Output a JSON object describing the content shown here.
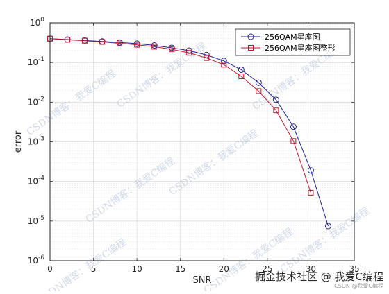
{
  "chart_data": {
    "type": "line",
    "title": "",
    "xlabel": "SNR",
    "ylabel": "error",
    "xlim": [
      0,
      35
    ],
    "ylim": [
      1e-06,
      1
    ],
    "yscale": "log",
    "xticks": [
      0,
      5,
      10,
      15,
      20,
      25,
      30,
      35
    ],
    "yticks": [
      {
        "value": 1e-06,
        "base": "10",
        "exp": "-6"
      },
      {
        "value": 1e-05,
        "base": "10",
        "exp": "-5"
      },
      {
        "value": 0.0001,
        "base": "10",
        "exp": "-4"
      },
      {
        "value": 0.001,
        "base": "10",
        "exp": "-3"
      },
      {
        "value": 0.01,
        "base": "10",
        "exp": "-2"
      },
      {
        "value": 0.1,
        "base": "10",
        "exp": "-1"
      },
      {
        "value": 1,
        "base": "10",
        "exp": "0"
      }
    ],
    "grid": true,
    "minor_grid": true,
    "legend_position": "top-right",
    "series": [
      {
        "name": "256QAM星座图",
        "color": "#1f1f8f",
        "marker": "circle",
        "x": [
          0,
          2,
          4,
          6,
          8,
          10,
          12,
          14,
          16,
          18,
          20,
          22,
          24,
          26,
          28,
          30,
          32
        ],
        "y": [
          0.4,
          0.38,
          0.36,
          0.34,
          0.32,
          0.3,
          0.27,
          0.235,
          0.2,
          0.155,
          0.11,
          0.066,
          0.031,
          0.0115,
          0.0024,
          0.00019,
          7.5e-06
        ]
      },
      {
        "name": "256QAM星座图整形",
        "color": "#c0182f",
        "marker": "square",
        "x": [
          0,
          2,
          4,
          6,
          8,
          10,
          12,
          14,
          16,
          18,
          20,
          22,
          24,
          26,
          28,
          30
        ],
        "y": [
          0.4,
          0.375,
          0.355,
          0.33,
          0.305,
          0.28,
          0.25,
          0.215,
          0.175,
          0.13,
          0.088,
          0.045,
          0.019,
          0.0062,
          0.00105,
          5.2e-05
        ]
      }
    ]
  },
  "watermarks": {
    "diagonal_text": "CSDN博客：我爱C编程",
    "footer_text": "掘金技术社区 @ 我爱C编程",
    "footer_small_text": "CSDN @我爱C编程"
  }
}
